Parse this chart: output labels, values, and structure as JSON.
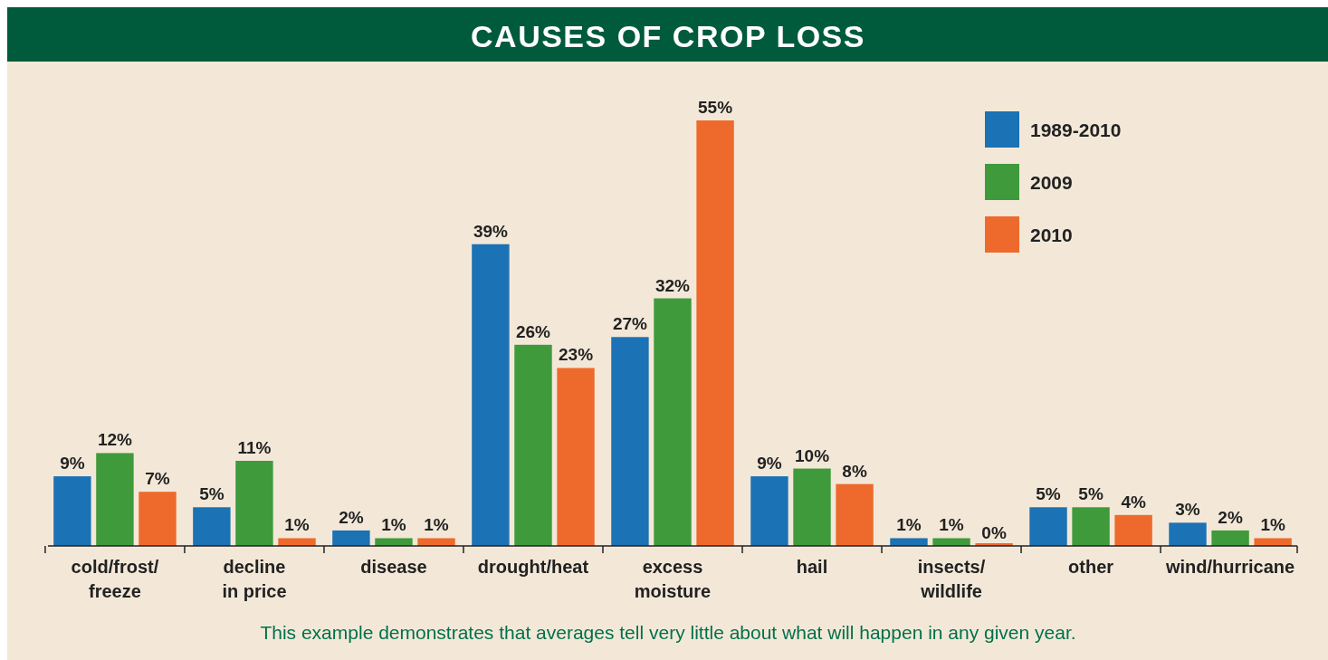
{
  "chart_data": {
    "type": "bar",
    "title": "CAUSES OF CROP LOSS",
    "categories": [
      "cold/frost/\nfreeze",
      "decline\nin price",
      "disease",
      "drought/heat",
      "excess\nmoisture",
      "hail",
      "insects/\nwildlife",
      "other",
      "wind/hurricane"
    ],
    "series": [
      {
        "name": "1989-2010",
        "color": "#1b72b4",
        "values": [
          9,
          5,
          2,
          39,
          27,
          9,
          1,
          5,
          3
        ],
        "value_labels": [
          "9%",
          "5%",
          "2%",
          "39%",
          "27%",
          "9%",
          "1%",
          "5%",
          "3%"
        ]
      },
      {
        "name": "2009",
        "color": "#3f9a3c",
        "values": [
          12,
          11,
          1,
          26,
          32,
          10,
          1,
          5,
          2
        ],
        "value_labels": [
          "12%",
          "11%",
          "1%",
          "26%",
          "32%",
          "10%",
          "1%",
          "5%",
          "2%"
        ]
      },
      {
        "name": "2010",
        "color": "#ee6a2c",
        "values": [
          7,
          1,
          1,
          23,
          55,
          8,
          0,
          4,
          1
        ],
        "value_labels": [
          "7%",
          "1%",
          "1%",
          "23%",
          "55%",
          "8%",
          "0%",
          "4%",
          "1%"
        ]
      }
    ],
    "legend": "top right",
    "tick_labels": "x",
    "annotations": [
      "This example demonstrates that averages tell very little about what will happen in any given year."
    ]
  }
}
